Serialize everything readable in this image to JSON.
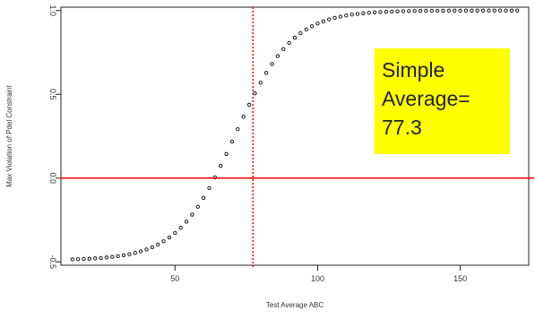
{
  "chart_data": {
    "type": "scatter",
    "xlabel": "Test Average ABC",
    "ylabel": "Max Violation of Pdel Constraint",
    "xlim": [
      10,
      174
    ],
    "ylim": [
      -0.52,
      1.02
    ],
    "x_ticks": [
      50,
      100,
      150
    ],
    "y_ticks": [
      -0.5,
      0.0,
      0.5,
      1.0
    ],
    "x_tick_labels": [
      "50",
      "100",
      "150"
    ],
    "y_tick_labels": [
      "-0.5",
      "0.0",
      "0.5",
      "1.0"
    ],
    "series": [
      {
        "marker": "open-circle",
        "curve": "logistic",
        "x_start": 14,
        "x_end": 170,
        "x_step": 2,
        "y_min": -0.49,
        "y_max": 1.0,
        "midpoint": 71,
        "scale": 10,
        "points": [
          [
            14,
            -0.49
          ],
          [
            20,
            -0.49
          ],
          [
            30,
            -0.49
          ],
          [
            40,
            -0.47
          ],
          [
            50,
            -0.43
          ],
          [
            55,
            -0.38
          ],
          [
            60,
            -0.28
          ],
          [
            65,
            -0.13
          ],
          [
            70,
            0.02
          ],
          [
            75,
            0.2
          ],
          [
            80,
            0.45
          ],
          [
            85,
            0.6
          ],
          [
            90,
            0.75
          ],
          [
            95,
            0.85
          ],
          [
            100,
            0.9
          ],
          [
            105,
            0.95
          ],
          [
            110,
            0.98
          ],
          [
            113,
            1.0
          ],
          [
            120,
            1.0
          ],
          [
            140,
            1.0
          ],
          [
            170,
            1.0
          ]
        ]
      }
    ],
    "reference_lines": [
      {
        "orientation": "vertical",
        "value": 77.3,
        "style": "dotted",
        "color": "#ff0000"
      },
      {
        "orientation": "horizontal",
        "value": 0.0,
        "style": "solid",
        "color": "#ff0000"
      }
    ],
    "annotation": {
      "lines": [
        "Simple",
        "Average=",
        "77.3"
      ],
      "background": "#ffff00"
    },
    "grid": false
  }
}
